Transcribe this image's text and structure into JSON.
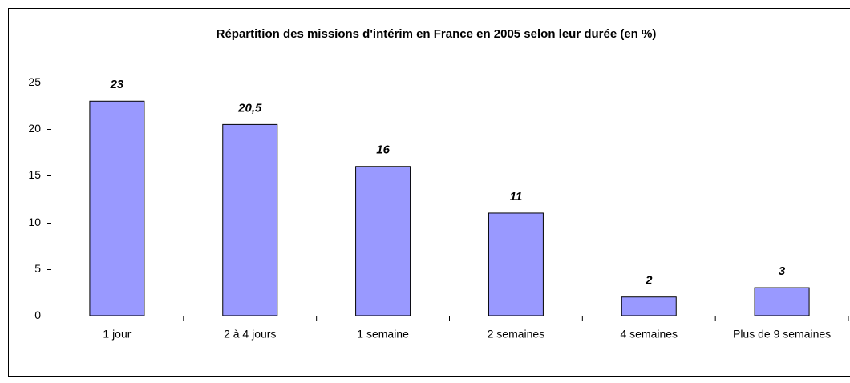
{
  "chart_data": {
    "type": "bar",
    "title": "Répartition des missions d'intérim en France en 2005 selon leur durée (en %)",
    "categories": [
      "1 jour",
      "2 à 4 jours",
      "1 semaine",
      "2 semaines",
      "4 semaines",
      "Plus de 9 semaines"
    ],
    "values": [
      23,
      20.5,
      16,
      11,
      2,
      3
    ],
    "value_labels": [
      "23",
      "20,5",
      "16",
      "11",
      "2",
      "3"
    ],
    "color": "#9999ff",
    "ylim": [
      0,
      25
    ],
    "yticks": [
      0,
      5,
      10,
      15,
      20,
      25
    ],
    "grid": false
  }
}
